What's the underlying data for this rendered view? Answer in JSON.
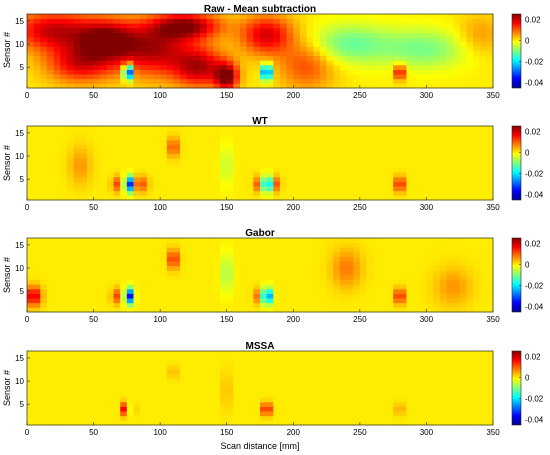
{
  "figure": {
    "xlabel": "Scan distance [mm]"
  },
  "chart_data": [
    {
      "type": "heatmap",
      "title": "Raw - Mean subtraction",
      "ylabel": "Sensor #",
      "xlim": [
        0,
        350
      ],
      "ylim": [
        0.5,
        16.5
      ],
      "x_ticks": [
        "0",
        "50",
        "100",
        "150",
        "200",
        "250",
        "300",
        "350"
      ],
      "y_ticks": [
        "5",
        "10",
        "15"
      ],
      "colorbar": {
        "colormap": "jet",
        "range": [
          -0.045,
          0.025
        ],
        "ticks": [
          "0.02",
          "0",
          "-0.02",
          "-0.04"
        ]
      },
      "background_value": 0.0,
      "blobs": [
        {
          "x": 20,
          "y": 13,
          "value": 0.02,
          "sx": 22,
          "sy": 3
        },
        {
          "x": 40,
          "y": 6,
          "value": 0.018,
          "sx": 18,
          "sy": 3
        },
        {
          "x": 60,
          "y": 11,
          "value": 0.022,
          "sx": 15,
          "sy": 3
        },
        {
          "x": 95,
          "y": 9,
          "value": 0.021,
          "sx": 20,
          "sy": 4
        },
        {
          "x": 120,
          "y": 14,
          "value": 0.023,
          "sx": 18,
          "sy": 2
        },
        {
          "x": 130,
          "y": 5,
          "value": 0.02,
          "sx": 14,
          "sy": 3
        },
        {
          "x": 180,
          "y": 12,
          "value": 0.019,
          "sx": 14,
          "sy": 3
        },
        {
          "x": 210,
          "y": 6,
          "value": 0.012,
          "sx": 15,
          "sy": 4
        },
        {
          "x": 150,
          "y": 3,
          "value": 0.024,
          "sx": 6,
          "sy": 2
        },
        {
          "x": 240,
          "y": 10,
          "value": -0.012,
          "sx": 25,
          "sy": 3
        },
        {
          "x": 300,
          "y": 9,
          "value": -0.01,
          "sx": 22,
          "sy": 3
        },
        {
          "x": 340,
          "y": 12,
          "value": 0.006,
          "sx": 12,
          "sy": 3
        },
        {
          "x": 76,
          "y": 4,
          "value": -0.045,
          "sx": 2.5,
          "sy": 1.2
        },
        {
          "x": 180,
          "y": 4,
          "value": -0.04,
          "sx": 2.5,
          "sy": 1.2
        },
        {
          "x": 280,
          "y": 4,
          "value": 0.02,
          "sx": 3,
          "sy": 1.2
        }
      ]
    },
    {
      "type": "heatmap",
      "title": "WT",
      "ylabel": "Sensor #",
      "xlim": [
        0,
        350
      ],
      "ylim": [
        0.5,
        16.5
      ],
      "x_ticks": [
        "0",
        "50",
        "100",
        "150",
        "200",
        "250",
        "300",
        "350"
      ],
      "y_ticks": [
        "5",
        "10",
        "15"
      ],
      "colorbar": {
        "colormap": "jet",
        "range": [
          -0.045,
          0.025
        ],
        "ticks": [
          "0.02",
          "0",
          "-0.02",
          "-0.04"
        ]
      },
      "background_value": 0.0,
      "blobs": [
        {
          "x": 76,
          "y": 4,
          "value": -0.045,
          "sx": 2.5,
          "sy": 1.2
        },
        {
          "x": 70,
          "y": 4,
          "value": 0.014,
          "sx": 4,
          "sy": 1.2
        },
        {
          "x": 85,
          "y": 4,
          "value": 0.012,
          "sx": 4,
          "sy": 1.2
        },
        {
          "x": 180,
          "y": 4,
          "value": -0.04,
          "sx": 2.5,
          "sy": 1.2
        },
        {
          "x": 175,
          "y": 4,
          "value": 0.014,
          "sx": 3,
          "sy": 1.2
        },
        {
          "x": 186,
          "y": 4,
          "value": 0.012,
          "sx": 3,
          "sy": 1.2
        },
        {
          "x": 280,
          "y": 4,
          "value": 0.018,
          "sx": 2.5,
          "sy": 1.2
        },
        {
          "x": 110,
          "y": 12,
          "value": 0.012,
          "sx": 3,
          "sy": 1.5
        },
        {
          "x": 150,
          "y": 8,
          "value": -0.006,
          "sx": 3,
          "sy": 3
        },
        {
          "x": 40,
          "y": 8,
          "value": 0.006,
          "sx": 6,
          "sy": 3
        }
      ]
    },
    {
      "type": "heatmap",
      "title": "Gabor",
      "ylabel": "Sensor #",
      "xlim": [
        0,
        350
      ],
      "ylim": [
        0.5,
        16.5
      ],
      "x_ticks": [
        "0",
        "50",
        "100",
        "150",
        "200",
        "250",
        "300",
        "350"
      ],
      "y_ticks": [
        "5",
        "10",
        "15"
      ],
      "colorbar": {
        "colormap": "jet",
        "range": [
          -0.045,
          0.025
        ],
        "ticks": [
          "0.02",
          "0",
          "-0.02",
          "-0.04"
        ]
      },
      "background_value": 0.0,
      "blobs": [
        {
          "x": 5,
          "y": 4,
          "value": 0.02,
          "sx": 4,
          "sy": 1.5
        },
        {
          "x": 76,
          "y": 4,
          "value": -0.045,
          "sx": 2.5,
          "sy": 1.2
        },
        {
          "x": 70,
          "y": 4,
          "value": 0.014,
          "sx": 4,
          "sy": 1.2
        },
        {
          "x": 180,
          "y": 4,
          "value": -0.04,
          "sx": 2.5,
          "sy": 1.2
        },
        {
          "x": 175,
          "y": 4,
          "value": 0.012,
          "sx": 3,
          "sy": 1.2
        },
        {
          "x": 280,
          "y": 4,
          "value": 0.018,
          "sx": 2.5,
          "sy": 1.2
        },
        {
          "x": 110,
          "y": 12,
          "value": 0.015,
          "sx": 3,
          "sy": 1.5
        },
        {
          "x": 150,
          "y": 9,
          "value": -0.008,
          "sx": 3,
          "sy": 3
        },
        {
          "x": 240,
          "y": 10,
          "value": 0.008,
          "sx": 8,
          "sy": 3
        },
        {
          "x": 320,
          "y": 6,
          "value": 0.006,
          "sx": 10,
          "sy": 3
        }
      ]
    },
    {
      "type": "heatmap",
      "title": "MSSA",
      "ylabel": "Sensor #",
      "xlim": [
        0,
        350
      ],
      "ylim": [
        0.5,
        16.5
      ],
      "x_ticks": [
        "0",
        "50",
        "100",
        "150",
        "200",
        "250",
        "300",
        "350"
      ],
      "y_ticks": [
        "5",
        "10",
        "15"
      ],
      "colorbar": {
        "colormap": "jet",
        "range": [
          -0.045,
          0.025
        ],
        "ticks": [
          "0.02",
          "0",
          "-0.02",
          "-0.04"
        ]
      },
      "background_value": 0.0,
      "blobs": [
        {
          "x": 76,
          "y": 4,
          "value": -0.02,
          "sx": 1.5,
          "sy": 1
        },
        {
          "x": 73,
          "y": 4,
          "value": 0.018,
          "sx": 1.5,
          "sy": 1
        },
        {
          "x": 79,
          "y": 4,
          "value": 0.018,
          "sx": 1.5,
          "sy": 1
        },
        {
          "x": 180,
          "y": 4,
          "value": -0.016,
          "sx": 1.5,
          "sy": 1
        },
        {
          "x": 177,
          "y": 4,
          "value": 0.016,
          "sx": 1.5,
          "sy": 1
        },
        {
          "x": 183,
          "y": 4,
          "value": 0.016,
          "sx": 1.5,
          "sy": 1
        },
        {
          "x": 280,
          "y": 4,
          "value": 0.014,
          "sx": 1.5,
          "sy": 1
        },
        {
          "x": 110,
          "y": 12,
          "value": 0.006,
          "sx": 2,
          "sy": 1
        },
        {
          "x": 150,
          "y": 8,
          "value": 0.005,
          "sx": 2,
          "sy": 3
        }
      ]
    }
  ]
}
